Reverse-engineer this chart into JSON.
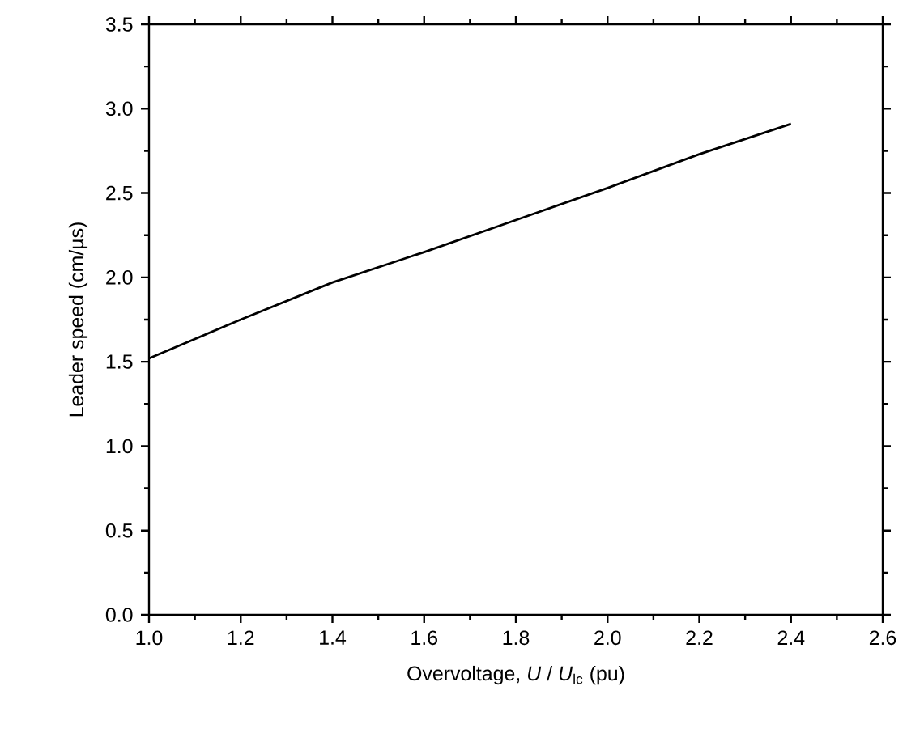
{
  "chart_data": {
    "type": "line",
    "xlabel": "Overvoltage, *U* / *U*$_{lc}$ (pu)",
    "ylabel": "Leader speed (cm/µs)",
    "x": [
      1.0,
      1.2,
      1.4,
      1.6,
      1.8,
      2.0,
      2.2,
      2.4
    ],
    "series": [
      {
        "color": "#000000",
        "values": [
          1.52,
          1.75,
          1.97,
          2.15,
          2.34,
          2.53,
          2.73,
          2.91
        ]
      }
    ],
    "xlim": [
      1.0,
      2.6
    ],
    "ylim": [
      0.0,
      3.5
    ],
    "xticks": [
      {
        "value": 1.0,
        "label": "1.0"
      },
      {
        "value": 1.2,
        "label": "1.2"
      },
      {
        "value": 1.4,
        "label": "1.4"
      },
      {
        "value": 1.6,
        "label": "1.6"
      },
      {
        "value": 1.8,
        "label": "1.8"
      },
      {
        "value": 2.0,
        "label": "2.0"
      },
      {
        "value": 2.2,
        "label": "2.2"
      },
      {
        "value": 2.4,
        "label": "2.4"
      },
      {
        "value": 2.6,
        "label": "2.6"
      }
    ],
    "yticks": [
      {
        "value": 0.0,
        "label": "0.0"
      },
      {
        "value": 0.5,
        "label": "0.5"
      },
      {
        "value": 1.0,
        "label": "1.0"
      },
      {
        "value": 1.5,
        "label": "1.5"
      },
      {
        "value": 2.0,
        "label": "2.0"
      },
      {
        "value": 2.5,
        "label": "2.5"
      },
      {
        "value": 3.0,
        "label": "3.0"
      },
      {
        "value": 3.5,
        "label": "3.5"
      }
    ],
    "marker": "none",
    "line_style": "solid"
  }
}
